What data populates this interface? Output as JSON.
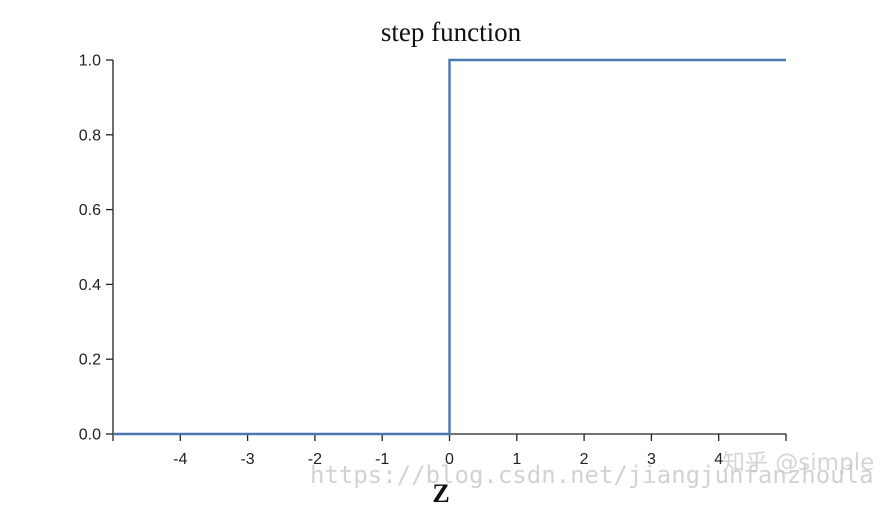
{
  "chart_data": {
    "type": "line",
    "title": "step function",
    "xlabel": "Z",
    "ylabel": "",
    "xlim": [
      -5,
      5
    ],
    "ylim": [
      0,
      1
    ],
    "xticks": [
      -4,
      -3,
      -2,
      -1,
      0,
      1,
      2,
      3,
      4
    ],
    "yticks": [
      "0.0",
      "0.2",
      "0.4",
      "0.6",
      "0.8",
      "1.0"
    ],
    "grid": false,
    "series": [
      {
        "color": "#4a79b0",
        "x": [
          -5,
          0,
          0,
          5
        ],
        "y": [
          0,
          0,
          1,
          1
        ]
      }
    ]
  },
  "watermarks": {
    "url": "https://blog.csdn.net/jiangjunfanzhoula",
    "zhihu": "知乎 @simple"
  }
}
